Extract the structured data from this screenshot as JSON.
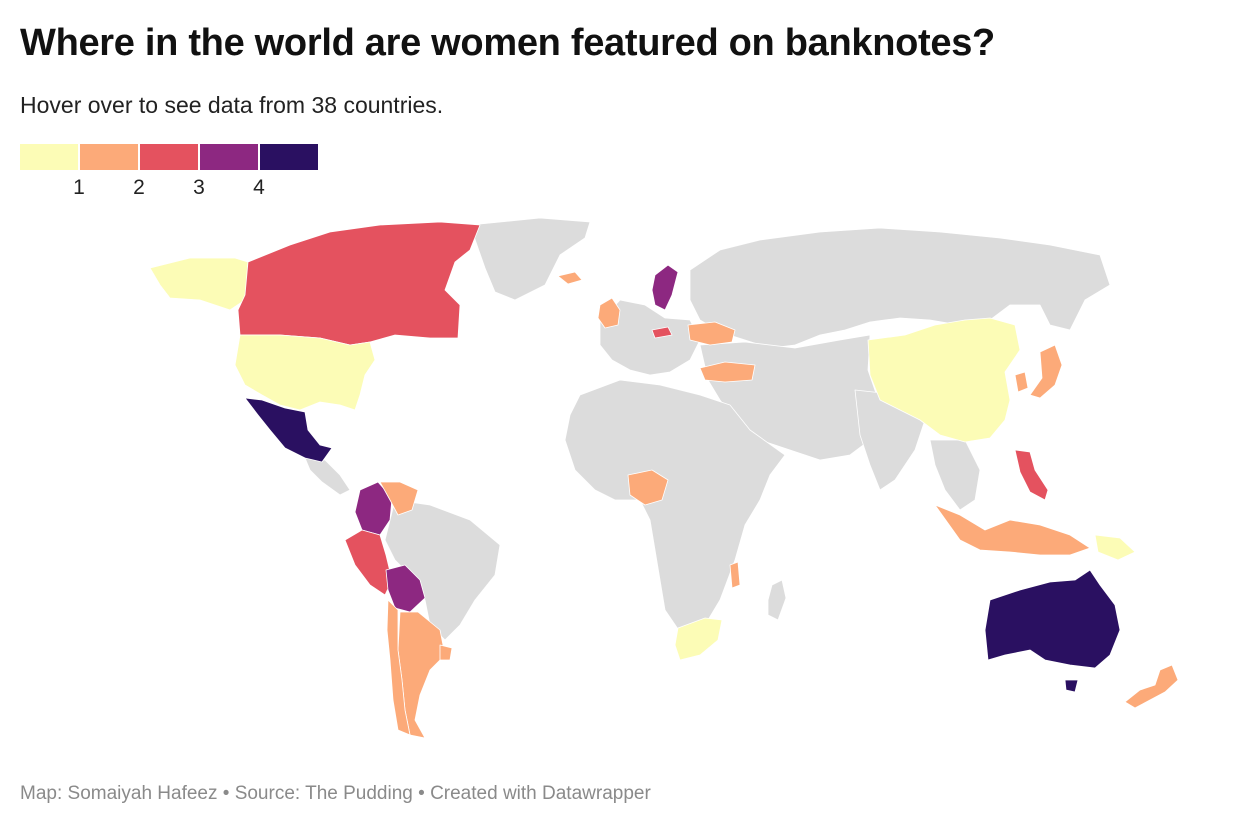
{
  "title": "Where in the world are women featured on banknotes?",
  "subtitle": "Hover over to see data from 38 countries.",
  "legend": {
    "colors": [
      "#fcfcb6",
      "#fcaa79",
      "#e4525f",
      "#8d2881",
      "#2a1061"
    ],
    "ticks": [
      "1",
      "2",
      "3",
      "4"
    ]
  },
  "footer": "Map: Somaiyah Hafeez • Source: The Pudding • Created with Datawrapper",
  "colors": {
    "no_data": "#dcdcdc",
    "background": "#ffffff"
  },
  "chart_data": {
    "type": "choropleth",
    "scale": "number of women featured on banknotes",
    "classes": [
      {
        "color": "#fcfcb6",
        "range": "<1"
      },
      {
        "color": "#fcaa79",
        "range": "1–2"
      },
      {
        "color": "#e4525f",
        "range": "2–3"
      },
      {
        "color": "#8d2881",
        "range": "3–4"
      },
      {
        "color": "#2a1061",
        "range": "4+"
      }
    ],
    "countries": [
      {
        "name": "United States",
        "class": 0
      },
      {
        "name": "Canada",
        "class": 2
      },
      {
        "name": "Mexico",
        "class": 4
      },
      {
        "name": "Colombia",
        "class": 3
      },
      {
        "name": "Venezuela",
        "class": 1
      },
      {
        "name": "Peru",
        "class": 2
      },
      {
        "name": "Bolivia",
        "class": 3
      },
      {
        "name": "Argentina",
        "class": 1
      },
      {
        "name": "Chile",
        "class": 1
      },
      {
        "name": "Uruguay",
        "class": 1
      },
      {
        "name": "Sweden",
        "class": 3
      },
      {
        "name": "United Kingdom",
        "class": 1
      },
      {
        "name": "Czech Republic",
        "class": 2
      },
      {
        "name": "Ukraine",
        "class": 1
      },
      {
        "name": "Turkey",
        "class": 1
      },
      {
        "name": "Iceland",
        "class": 1
      },
      {
        "name": "Nigeria",
        "class": 1
      },
      {
        "name": "South Africa",
        "class": 0
      },
      {
        "name": "Malawi",
        "class": 1
      },
      {
        "name": "China",
        "class": 0
      },
      {
        "name": "South Korea",
        "class": 1
      },
      {
        "name": "Japan",
        "class": 1
      },
      {
        "name": "Philippines",
        "class": 2
      },
      {
        "name": "Indonesia",
        "class": 1
      },
      {
        "name": "Papua New Guinea",
        "class": 0
      },
      {
        "name": "Australia",
        "class": 4
      },
      {
        "name": "New Zealand",
        "class": 1
      }
    ]
  }
}
